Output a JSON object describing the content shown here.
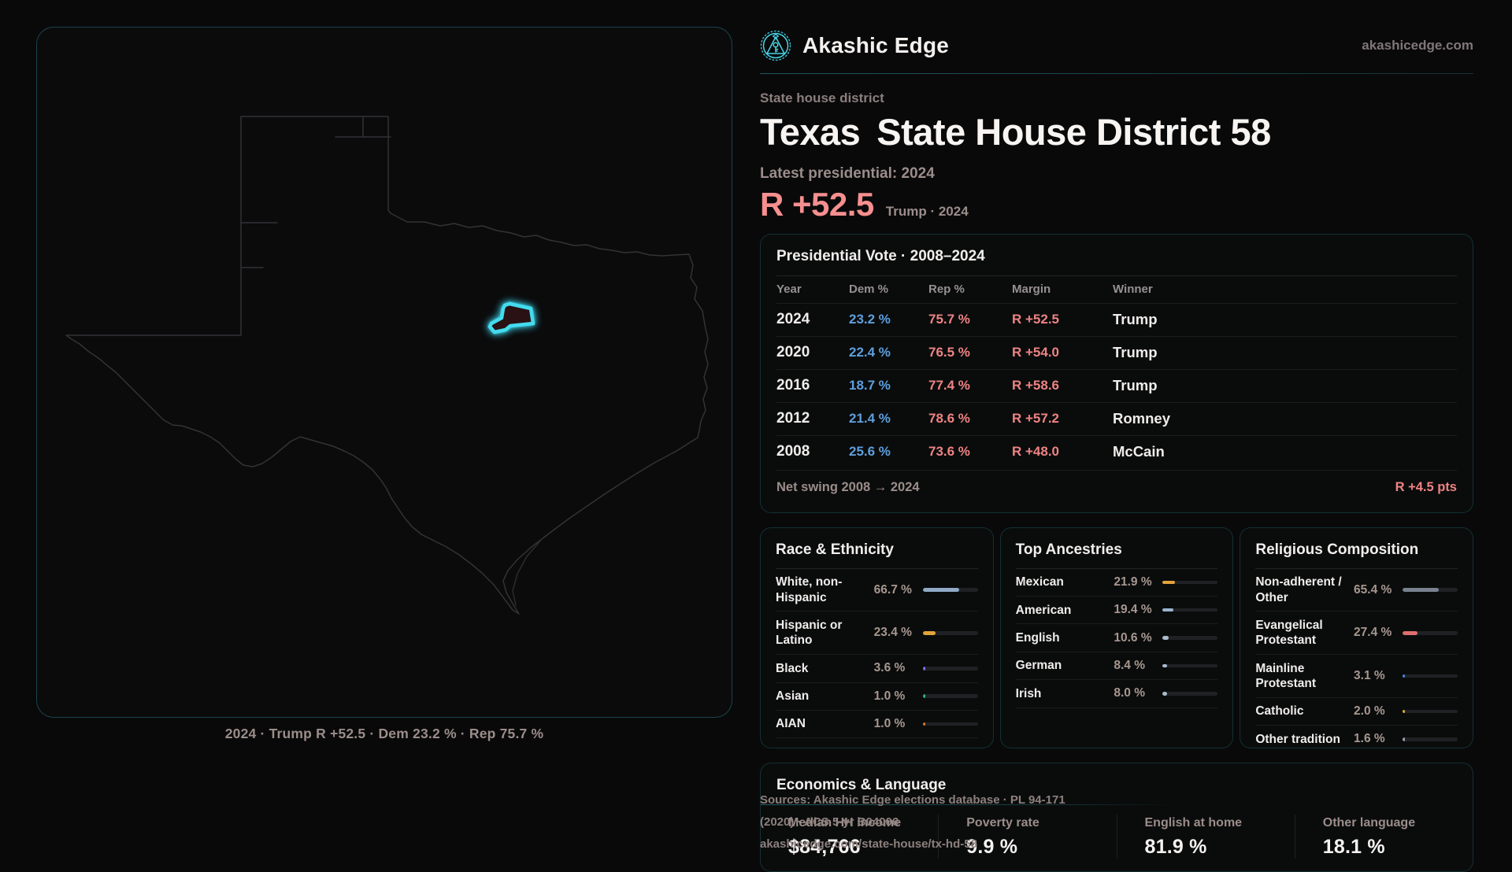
{
  "brand": {
    "name": "Akashic Edge",
    "domain": "akashicedge.com"
  },
  "header": {
    "kicker": "State house district",
    "title_state": "Texas",
    "title_rest": "State House District 58",
    "latest_label": "Latest presidential: 2024",
    "margin_value": "R +52.5",
    "margin_caption": "Trump · 2024"
  },
  "map": {
    "caption": "2024 · Trump R +52.5 · Dem 23.2 % · Rep 75.7 %"
  },
  "presidential": {
    "title": "Presidential Vote · 2008–2024",
    "columns": [
      "Year",
      "Dem %",
      "Rep %",
      "Margin",
      "Winner"
    ],
    "rows": [
      {
        "year": "2024",
        "dem": "23.2 %",
        "rep": "75.7 %",
        "margin": "R +52.5",
        "winner": "Trump"
      },
      {
        "year": "2020",
        "dem": "22.4 %",
        "rep": "76.5 %",
        "margin": "R +54.0",
        "winner": "Trump"
      },
      {
        "year": "2016",
        "dem": "18.7 %",
        "rep": "77.4 %",
        "margin": "R +58.6",
        "winner": "Trump"
      },
      {
        "year": "2012",
        "dem": "21.4 %",
        "rep": "78.6 %",
        "margin": "R +57.2",
        "winner": "Romney"
      },
      {
        "year": "2008",
        "dem": "25.6 %",
        "rep": "73.6 %",
        "margin": "R +48.0",
        "winner": "McCain"
      }
    ],
    "net_swing_label": "Net swing 2008 → 2024",
    "net_swing_value": "R +4.5 pts"
  },
  "demographics": [
    {
      "title": "Race & Ethnicity",
      "rows": [
        {
          "label": "White, non-Hispanic",
          "value": "66.7 %",
          "pct": 66.7,
          "color": "#8fa9c6"
        },
        {
          "label": "Hispanic or Latino",
          "value": "23.4 %",
          "pct": 23.4,
          "color": "#e3a33b"
        },
        {
          "label": "Black",
          "value": "3.6 %",
          "pct": 3.6,
          "color": "#7d6ee4"
        },
        {
          "label": "Asian",
          "value": "1.0 %",
          "pct": 1.0,
          "color": "#2fae93"
        },
        {
          "label": "AIAN",
          "value": "1.0 %",
          "pct": 1.0,
          "color": "#d07a38"
        }
      ]
    },
    {
      "title": "Top Ancestries",
      "rows": [
        {
          "label": "Mexican",
          "value": "21.9 %",
          "pct": 21.9,
          "color": "#e3a33b"
        },
        {
          "label": "American",
          "value": "19.4 %",
          "pct": 19.4,
          "color": "#9ab3cf"
        },
        {
          "label": "English",
          "value": "10.6 %",
          "pct": 10.6,
          "color": "#a9bccd"
        },
        {
          "label": "German",
          "value": "8.4 %",
          "pct": 8.4,
          "color": "#a9bccd"
        },
        {
          "label": "Irish",
          "value": "8.0 %",
          "pct": 8.0,
          "color": "#a9bccd"
        }
      ]
    },
    {
      "title": "Religious Composition",
      "rows": [
        {
          "label": "Non-adherent / Other",
          "value": "65.4 %",
          "pct": 65.4,
          "color": "#79828f"
        },
        {
          "label": "Evangelical Protestant",
          "value": "27.4 %",
          "pct": 27.4,
          "color": "#dd6f6f"
        },
        {
          "label": "Mainline Protestant",
          "value": "3.1 %",
          "pct": 3.1,
          "color": "#4f86d6"
        },
        {
          "label": "Catholic",
          "value": "2.0 %",
          "pct": 2.0,
          "color": "#d9ad3c"
        },
        {
          "label": "Other tradition",
          "value": "1.6 %",
          "pct": 1.6,
          "color": "#9aa1a9"
        }
      ]
    }
  ],
  "economics": {
    "title": "Economics & Language",
    "stats": [
      {
        "label": "Median HH income",
        "value": "$84,766"
      },
      {
        "label": "Poverty rate",
        "value": "9.9 %"
      },
      {
        "label": "English at home",
        "value": "81.9 %"
      },
      {
        "label": "Other language",
        "value": "18.1 %"
      }
    ]
  },
  "footer": {
    "sources": "Sources: Akashic Edge elections database · PL 94-171 (2020) · ACS 5-yr B04006",
    "url": "akashicedge.com/state-house/tx-hd-58"
  },
  "colors": {
    "accent_cyan": "#3fd6ea",
    "dem_blue": "#5f9fdd",
    "rep_red": "#ef8383"
  }
}
